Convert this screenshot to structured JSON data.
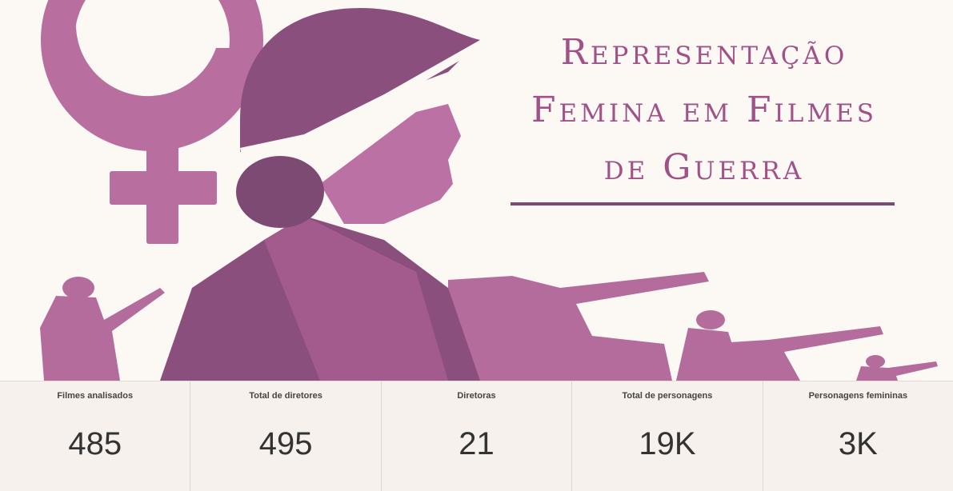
{
  "banner": {
    "title_lines": [
      "Representação",
      "Femina em Filmes",
      "de Guerra"
    ],
    "image_description_icons": [
      "female-symbol-icon",
      "soldier-profile-icon",
      "tank-icon",
      "rifleman-icon"
    ],
    "colors": {
      "accent": "#a05288",
      "dark_purple": "#7d4a74",
      "light_purple": "#b96fa3",
      "background": "#fcf8f3"
    }
  },
  "kpis": [
    {
      "label": "Filmes analisados",
      "value": "485"
    },
    {
      "label": "Total de diretores",
      "value": "495"
    },
    {
      "label": "Diretoras",
      "value": "21"
    },
    {
      "label": "Total de personagens",
      "value": "19K"
    },
    {
      "label": "Personagens femininas",
      "value": "3K"
    }
  ]
}
